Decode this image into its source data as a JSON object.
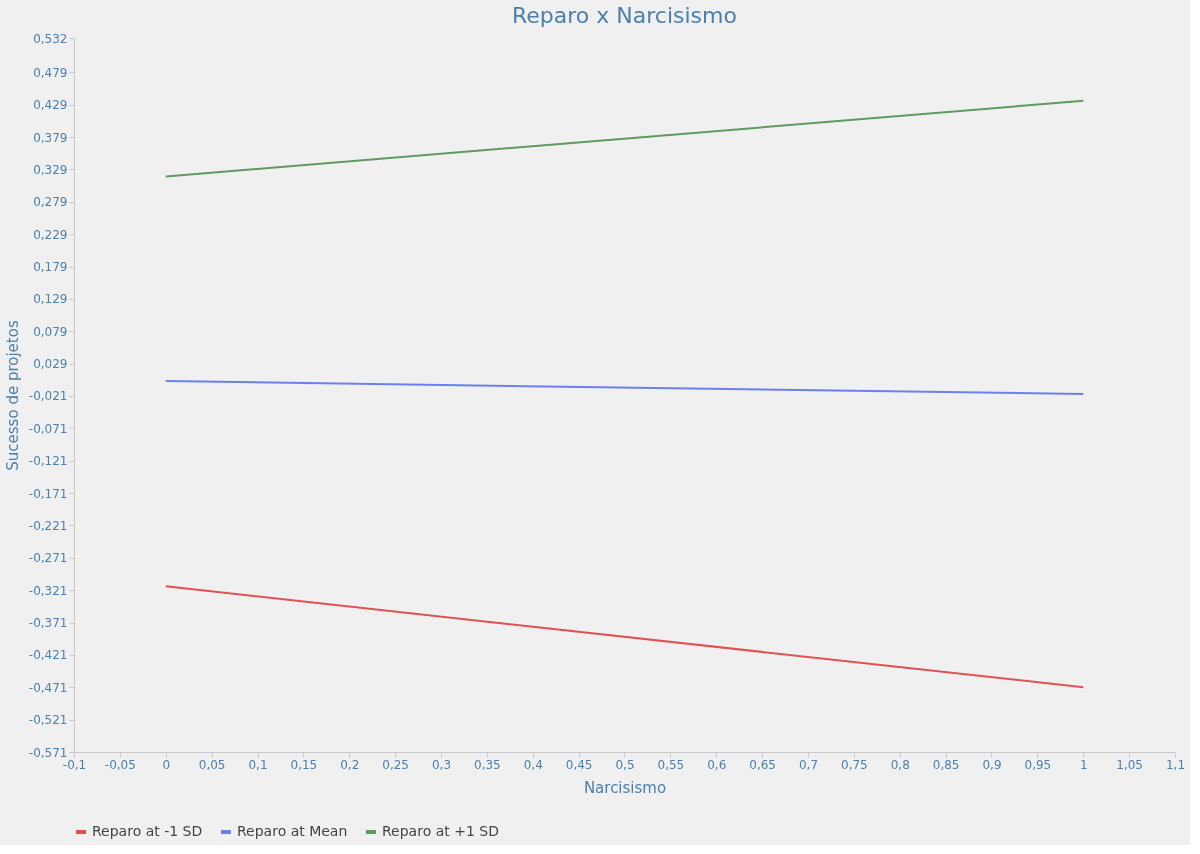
{
  "chart_data": {
    "type": "line",
    "title": "Reparo x Narcisismo",
    "xlabel": "Narcisismo",
    "ylabel": "Sucesso de projetos",
    "x": [
      0,
      1
    ],
    "series": [
      {
        "name": "Reparo at -1 SD",
        "color": "#e05252",
        "values": [
          -0.315,
          -0.471
        ]
      },
      {
        "name": "Reparo at Mean",
        "color": "#6b80ee",
        "values": [
          0.002,
          -0.018
        ]
      },
      {
        "name": "Reparo at +1 SD",
        "color": "#5f9a5f",
        "values": [
          0.318,
          0.435
        ]
      }
    ],
    "xlim": [
      -0.1,
      1.1
    ],
    "xticks": [
      {
        "value": -0.1,
        "label": "-0,1"
      },
      {
        "value": -0.05,
        "label": "-0,05"
      },
      0,
      {
        "value": 0.05,
        "label": "0,05"
      },
      {
        "value": 0.1,
        "label": "0,1"
      },
      {
        "value": 0.15,
        "label": "0,15"
      },
      {
        "value": 0.2,
        "label": "0,2"
      },
      {
        "value": 0.25,
        "label": "0,25"
      },
      {
        "value": 0.3,
        "label": "0,3"
      },
      {
        "value": 0.35,
        "label": "0,35"
      },
      {
        "value": 0.4,
        "label": "0,4"
      },
      {
        "value": 0.45,
        "label": "0,45"
      },
      {
        "value": 0.5,
        "label": "0,5"
      },
      {
        "value": 0.55,
        "label": "0,55"
      },
      {
        "value": 0.6,
        "label": "0,6"
      },
      {
        "value": 0.65,
        "label": "0,65"
      },
      {
        "value": 0.7,
        "label": "0,7"
      },
      {
        "value": 0.75,
        "label": "0,75"
      },
      {
        "value": 0.8,
        "label": "0,8"
      },
      {
        "value": 0.85,
        "label": "0,85"
      },
      {
        "value": 0.9,
        "label": "0,9"
      },
      {
        "value": 0.95,
        "label": "0,95"
      },
      1,
      {
        "value": 1.05,
        "label": "1,05"
      },
      {
        "value": 1.1,
        "label": "1,1"
      }
    ],
    "ylim": [
      -0.571,
      0.532
    ],
    "yticks": [
      {
        "value": 0.532,
        "label": "0,532"
      },
      {
        "value": 0.479,
        "label": "0,479"
      },
      {
        "value": 0.429,
        "label": "0,429"
      },
      {
        "value": 0.379,
        "label": "0,379"
      },
      {
        "value": 0.329,
        "label": "0,329"
      },
      {
        "value": 0.279,
        "label": "0,279"
      },
      {
        "value": 0.229,
        "label": "0,229"
      },
      {
        "value": 0.179,
        "label": "0,179"
      },
      {
        "value": 0.129,
        "label": "0,129"
      },
      {
        "value": 0.079,
        "label": "0,079"
      },
      {
        "value": 0.029,
        "label": "0,029"
      },
      {
        "value": -0.021,
        "label": "-0,021"
      },
      {
        "value": -0.071,
        "label": "-0,071"
      },
      {
        "value": -0.121,
        "label": "-0,121"
      },
      {
        "value": -0.171,
        "label": "-0,171"
      },
      {
        "value": -0.221,
        "label": "-0,221"
      },
      {
        "value": -0.271,
        "label": "-0,271"
      },
      {
        "value": -0.321,
        "label": "-0,321"
      },
      {
        "value": -0.371,
        "label": "-0,371"
      },
      {
        "value": -0.421,
        "label": "-0,421"
      },
      {
        "value": -0.471,
        "label": "-0,471"
      },
      {
        "value": -0.521,
        "label": "-0,521"
      },
      {
        "value": -0.571,
        "label": "-0,571"
      }
    ],
    "grid": false,
    "legend": "bottom",
    "marker": "none",
    "line_style": "solid"
  }
}
